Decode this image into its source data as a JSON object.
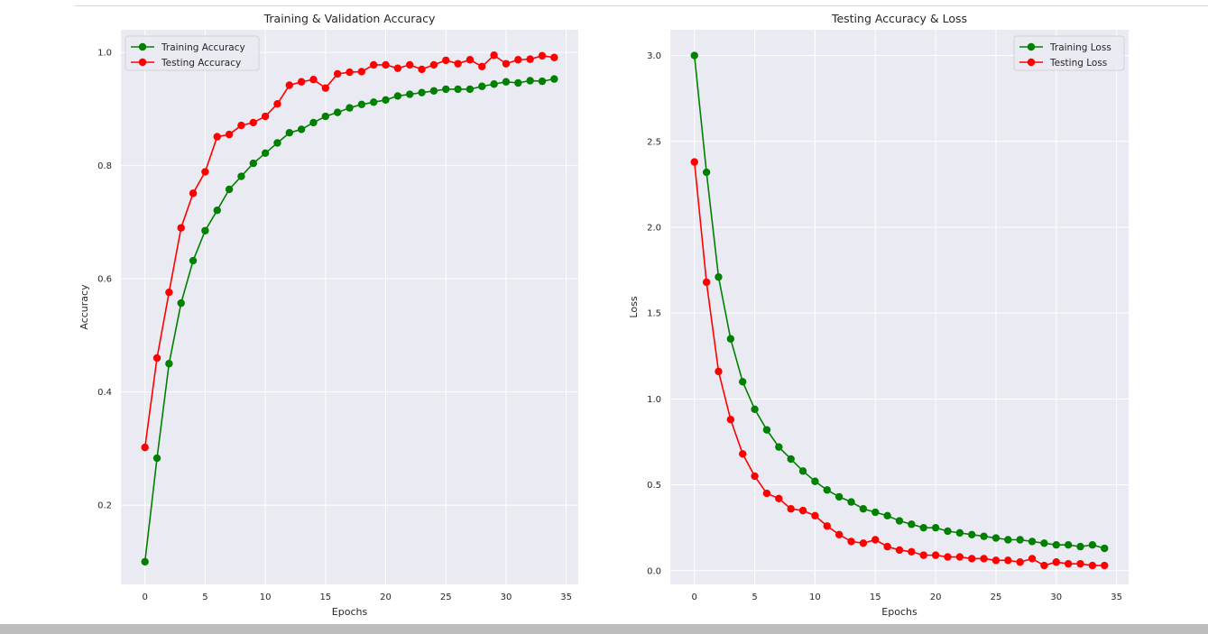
{
  "colors": {
    "plot_bg": "#eaeaf2",
    "grid": "#ffffff",
    "train": "#008000",
    "test": "#ff0000"
  },
  "chart_data": [
    {
      "type": "line",
      "title": "Training & Validation Accuracy",
      "xlabel": "Epochs",
      "ylabel": "Accuracy",
      "xlim": [
        -2,
        36
      ],
      "ylim": [
        0.06,
        1.04
      ],
      "xticks": [
        0,
        5,
        10,
        15,
        20,
        25,
        30,
        35
      ],
      "yticks": [
        0.2,
        0.4,
        0.6,
        0.8,
        1.0
      ],
      "xtick_labels": [
        "0",
        "5",
        "10",
        "15",
        "20",
        "25",
        "30",
        "35"
      ],
      "ytick_labels": [
        "0.2",
        "0.4",
        "0.6",
        "0.8",
        "1.0"
      ],
      "grid": true,
      "legend_position": "top-left",
      "x": [
        0,
        1,
        2,
        3,
        4,
        5,
        6,
        7,
        8,
        9,
        10,
        11,
        12,
        13,
        14,
        15,
        16,
        17,
        18,
        19,
        20,
        21,
        22,
        23,
        24,
        25,
        26,
        27,
        28,
        29,
        30,
        31,
        32,
        33,
        34
      ],
      "series": [
        {
          "name": "Training Accuracy",
          "color": "#008000",
          "values": [
            0.1,
            0.283,
            0.45,
            0.557,
            0.632,
            0.685,
            0.721,
            0.758,
            0.781,
            0.804,
            0.822,
            0.84,
            0.858,
            0.864,
            0.876,
            0.887,
            0.894,
            0.902,
            0.908,
            0.912,
            0.916,
            0.923,
            0.926,
            0.929,
            0.932,
            0.935,
            0.935,
            0.935,
            0.94,
            0.944,
            0.948,
            0.946,
            0.95,
            0.949,
            0.953
          ]
        },
        {
          "name": "Testing Accuracy",
          "color": "#ff0000",
          "values": [
            0.302,
            0.46,
            0.576,
            0.69,
            0.751,
            0.789,
            0.851,
            0.855,
            0.871,
            0.876,
            0.887,
            0.909,
            0.942,
            0.948,
            0.952,
            0.937,
            0.962,
            0.965,
            0.966,
            0.978,
            0.978,
            0.972,
            0.978,
            0.97,
            0.978,
            0.986,
            0.98,
            0.987,
            0.975,
            0.995,
            0.98,
            0.987,
            0.988,
            0.994,
            0.991
          ]
        }
      ]
    },
    {
      "type": "line",
      "title": "Testing Accuracy & Loss",
      "xlabel": "Epochs",
      "ylabel": "Loss",
      "xlim": [
        -2,
        36
      ],
      "ylim": [
        -0.08,
        3.15
      ],
      "xticks": [
        0,
        5,
        10,
        15,
        20,
        25,
        30,
        35
      ],
      "yticks": [
        0.0,
        0.5,
        1.0,
        1.5,
        2.0,
        2.5,
        3.0
      ],
      "xtick_labels": [
        "0",
        "5",
        "10",
        "15",
        "20",
        "25",
        "30",
        "35"
      ],
      "ytick_labels": [
        "0.0",
        "0.5",
        "1.0",
        "1.5",
        "2.0",
        "2.5",
        "3.0"
      ],
      "grid": true,
      "legend_position": "top-right",
      "x": [
        0,
        1,
        2,
        3,
        4,
        5,
        6,
        7,
        8,
        9,
        10,
        11,
        12,
        13,
        14,
        15,
        16,
        17,
        18,
        19,
        20,
        21,
        22,
        23,
        24,
        25,
        26,
        27,
        28,
        29,
        30,
        31,
        32,
        33,
        34
      ],
      "series": [
        {
          "name": "Training Loss",
          "color": "#008000",
          "values": [
            3.0,
            2.32,
            1.71,
            1.35,
            1.1,
            0.94,
            0.82,
            0.72,
            0.65,
            0.58,
            0.52,
            0.47,
            0.43,
            0.4,
            0.36,
            0.34,
            0.32,
            0.29,
            0.27,
            0.25,
            0.25,
            0.23,
            0.22,
            0.21,
            0.2,
            0.19,
            0.18,
            0.18,
            0.17,
            0.16,
            0.15,
            0.15,
            0.14,
            0.15,
            0.13
          ]
        },
        {
          "name": "Testing Loss",
          "color": "#ff0000",
          "values": [
            2.38,
            1.68,
            1.16,
            0.88,
            0.68,
            0.55,
            0.45,
            0.42,
            0.36,
            0.35,
            0.32,
            0.26,
            0.21,
            0.17,
            0.16,
            0.18,
            0.14,
            0.12,
            0.11,
            0.09,
            0.09,
            0.08,
            0.08,
            0.07,
            0.07,
            0.06,
            0.06,
            0.05,
            0.07,
            0.03,
            0.05,
            0.04,
            0.04,
            0.03,
            0.03
          ]
        }
      ]
    }
  ]
}
